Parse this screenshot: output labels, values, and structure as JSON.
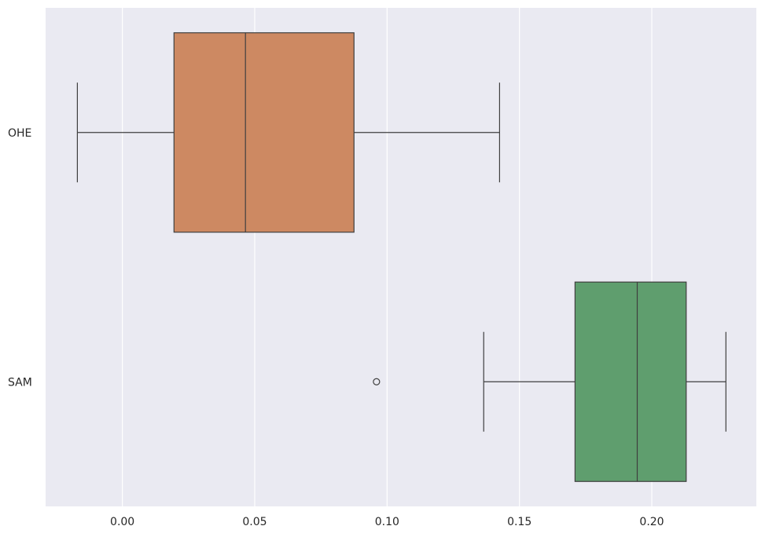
{
  "chart_data": {
    "type": "boxplot",
    "orientation": "horizontal",
    "title": "",
    "xlabel": "",
    "ylabel": "",
    "xlim": [
      -0.029,
      0.2395
    ],
    "x_ticks": [
      0.0,
      0.05,
      0.1,
      0.15,
      0.2
    ],
    "x_tick_labels": [
      "0.00",
      "0.05",
      "0.10",
      "0.15",
      "0.20"
    ],
    "grid": true,
    "background_color": "#eaeaf2",
    "grid_color": "#ffffff",
    "line_color": "#3f3f3f",
    "categories": [
      "OHE",
      "SAM"
    ],
    "series": [
      {
        "category": "OHE",
        "color": "#cd8962",
        "whisker_low": -0.017,
        "q1": 0.0195,
        "median": 0.0465,
        "q3": 0.0875,
        "whisker_high": 0.1425,
        "outliers": []
      },
      {
        "category": "SAM",
        "color": "#5f9e6e",
        "whisker_low": 0.1365,
        "q1": 0.171,
        "median": 0.1945,
        "q3": 0.213,
        "whisker_high": 0.228,
        "outliers": [
          0.096
        ]
      }
    ]
  }
}
